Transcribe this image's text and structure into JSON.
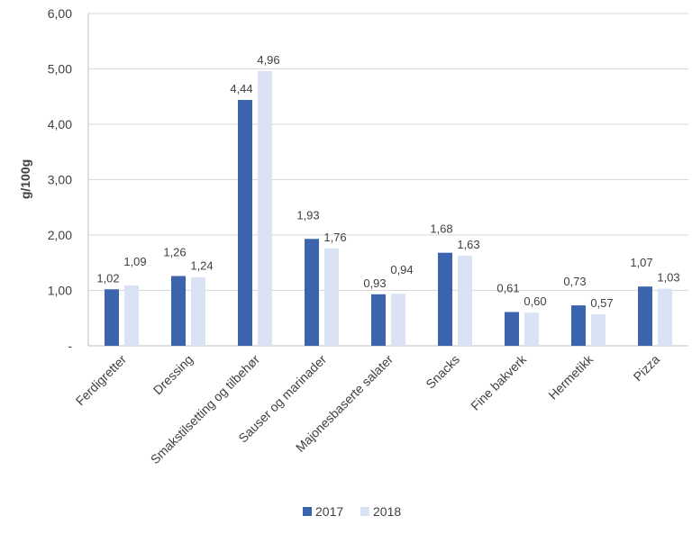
{
  "chart_data": {
    "type": "bar",
    "title": "",
    "xlabel": "",
    "ylabel": "g/100g",
    "ylim": [
      0,
      6
    ],
    "yticks": [
      "-",
      "1,00",
      "2,00",
      "3,00",
      "4,00",
      "5,00",
      "6,00"
    ],
    "grid": true,
    "legend_position": "bottom",
    "categories": [
      "Ferdigretter",
      "Dressing",
      "Smakstilsetting og tilbehør",
      "Sauser og marinader",
      "Majonesbaserte salater",
      "Snacks",
      "Fine bakverk",
      "Hermetikk",
      "Pizza"
    ],
    "series": [
      {
        "name": "2017",
        "color": "#3c64ad",
        "values": [
          1.02,
          1.26,
          4.44,
          1.93,
          0.93,
          1.68,
          0.61,
          0.73,
          1.07
        ],
        "labels": [
          "1,02",
          "1,26",
          "4,44",
          "1,93",
          "0,93",
          "1,68",
          "0,61",
          "0,73",
          "1,07"
        ]
      },
      {
        "name": "2018",
        "color": "#dae3f3",
        "values": [
          1.09,
          1.24,
          4.96,
          1.76,
          0.94,
          1.63,
          0.6,
          0.57,
          1.03
        ],
        "labels": [
          "1,09",
          "1,24",
          "4,96",
          "1,76",
          "0,94",
          "1,63",
          "0,60",
          "0,57",
          "1,03"
        ]
      }
    ]
  }
}
